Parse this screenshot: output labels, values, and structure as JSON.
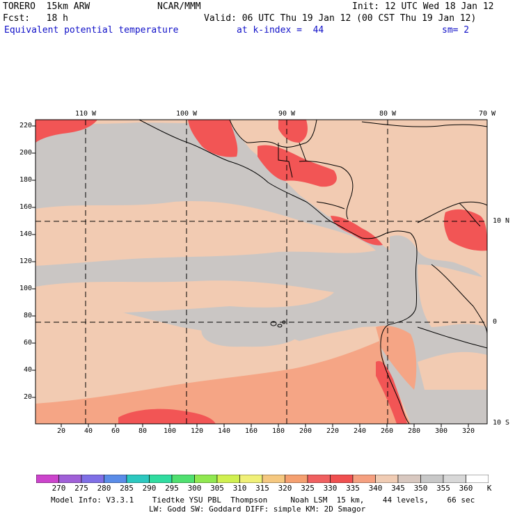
{
  "header": {
    "line1_left": "TORERO  15km ARW",
    "line1_center": "NCAR/MMM",
    "line1_right": "Init: 12 UTC Wed 18 Jan 12",
    "line2_left": "Fcst:   18 h",
    "line2_right": "Valid: 06 UTC Thu 19 Jan 12 (00 CST Thu 19 Jan 12)",
    "line3_field": "Equivalent potential temperature",
    "line3_level": "at k-index =  44",
    "line3_smooth": "sm= 2"
  },
  "axes": {
    "left_ticks": [
      "220",
      "200",
      "180",
      "160",
      "140",
      "120",
      "100",
      "80",
      "60",
      "40",
      "20"
    ],
    "bottom_ticks": [
      "20",
      "40",
      "60",
      "80",
      "100",
      "120",
      "140",
      "160",
      "180",
      "200",
      "220",
      "240",
      "260",
      "280",
      "300",
      "320"
    ],
    "top_lon_labels": [
      "110 W",
      "100 W",
      "90 W",
      "80 W",
      "70 W"
    ],
    "right_lat_labels": [
      "10 N",
      "0",
      "10 S"
    ]
  },
  "colorbar": {
    "unit": "K",
    "labels": [
      "270",
      "275",
      "280",
      "285",
      "290",
      "295",
      "300",
      "305",
      "310",
      "315",
      "320",
      "325",
      "330",
      "335",
      "340",
      "345",
      "350",
      "355",
      "360"
    ],
    "colors": [
      "#cc44cc",
      "#a060d8",
      "#7f6fe6",
      "#5a8ce8",
      "#2cc8c0",
      "#30dca0",
      "#50e070",
      "#90e850",
      "#d0f050",
      "#f0f078",
      "#f5c880",
      "#f5a070",
      "#f06060",
      "#f05050",
      "#f5a080",
      "#f0ccb4",
      "#d8c8c0",
      "#c8c8c8",
      "#d8d8d8",
      "#ffffff"
    ],
    "highlight_color": "#f25555",
    "ocean_gray": "#cac6c4",
    "warm_peach": "#f2cbb2",
    "salmon": "#f5a585"
  },
  "footer": {
    "line1": "Model Info: V3.3.1    Tiedtke YSU PBL  Thompson     Noah LSM  15 km,    44 levels,    66 sec",
    "line2": "LW: Godd SW: Goddard DIFF: simple KM: 2D Smagor"
  }
}
